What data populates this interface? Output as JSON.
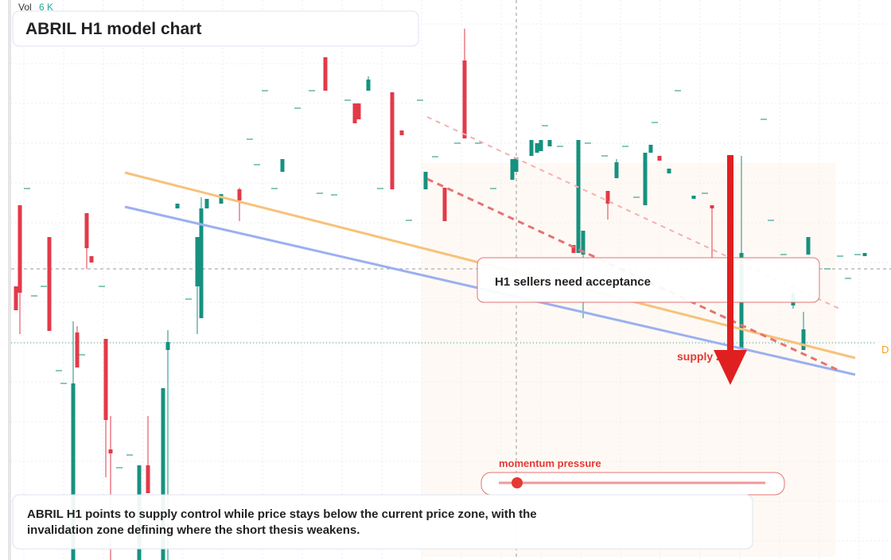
{
  "header": {
    "volume_label": "Vol",
    "volume_value": "6 K",
    "title": "ABRIL H1 model chart"
  },
  "callout": {
    "text": "H1 sellers need acceptance"
  },
  "zone_label": "supply zone",
  "edge_label": "D",
  "momentum": {
    "label": "momentum pressure"
  },
  "caption": {
    "text": "ABRIL H1 points to supply control while price stays below the current price zone, with the invalidation zone defining where the short thesis weakens."
  }
}
